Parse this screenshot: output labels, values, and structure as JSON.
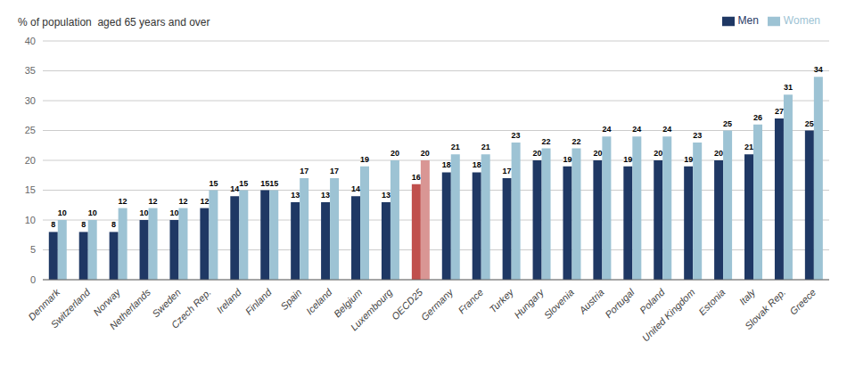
{
  "chart_data": {
    "type": "bar",
    "y_label": "% of population  aged 65 years and over",
    "categories": [
      "Denmark",
      "Switzerland",
      "Norway",
      "Netherlands",
      "Sweden",
      "Czech Rep.",
      "Ireland",
      "Finland",
      "Spain",
      "Iceland",
      "Belgium",
      "Luxembourg",
      "OECD25",
      "Germany",
      "France",
      "Turkey",
      "Hungary",
      "Slovenia",
      "Austria",
      "Portugal",
      "Poland",
      "United Kingdom",
      "Estonia",
      "Italy",
      "Slovak Rep.",
      "Greece"
    ],
    "series": [
      {
        "name": "Men",
        "color": "#1f3864",
        "colors": [
          "#1f3864",
          "#1f3864",
          "#1f3864",
          "#1f3864",
          "#1f3864",
          "#1f3864",
          "#1f3864",
          "#1f3864",
          "#1f3864",
          "#1f3864",
          "#1f3864",
          "#1f3864",
          "#c0504d",
          "#1f3864",
          "#1f3864",
          "#1f3864",
          "#1f3864",
          "#1f3864",
          "#1f3864",
          "#1f3864",
          "#1f3864",
          "#1f3864",
          "#1f3864",
          "#1f3864",
          "#1f3864",
          "#1f3864"
        ],
        "values": [
          8,
          8,
          8,
          10,
          10,
          12,
          14,
          15,
          13,
          13,
          14,
          13,
          16,
          18,
          18,
          17,
          20,
          19,
          20,
          19,
          20,
          19,
          20,
          21,
          27,
          25
        ]
      },
      {
        "name": "Women",
        "color": "#9dc3d4",
        "colors": [
          "#9dc3d4",
          "#9dc3d4",
          "#9dc3d4",
          "#9dc3d4",
          "#9dc3d4",
          "#9dc3d4",
          "#9dc3d4",
          "#9dc3d4",
          "#9dc3d4",
          "#9dc3d4",
          "#9dc3d4",
          "#9dc3d4",
          "#d99694",
          "#9dc3d4",
          "#9dc3d4",
          "#9dc3d4",
          "#9dc3d4",
          "#9dc3d4",
          "#9dc3d4",
          "#9dc3d4",
          "#9dc3d4",
          "#9dc3d4",
          "#9dc3d4",
          "#9dc3d4",
          "#9dc3d4",
          "#9dc3d4"
        ],
        "values": [
          10,
          10,
          12,
          12,
          12,
          15,
          15,
          15,
          17,
          17,
          19,
          20,
          20,
          21,
          21,
          23,
          22,
          22,
          24,
          24,
          24,
          23,
          25,
          26,
          31,
          34
        ]
      }
    ],
    "ylim": [
      0,
      40
    ],
    "yticks": [
      0,
      5,
      10,
      15,
      20,
      25,
      30,
      35,
      40
    ],
    "grid": true,
    "legend": "upper right",
    "data_labels": true
  }
}
